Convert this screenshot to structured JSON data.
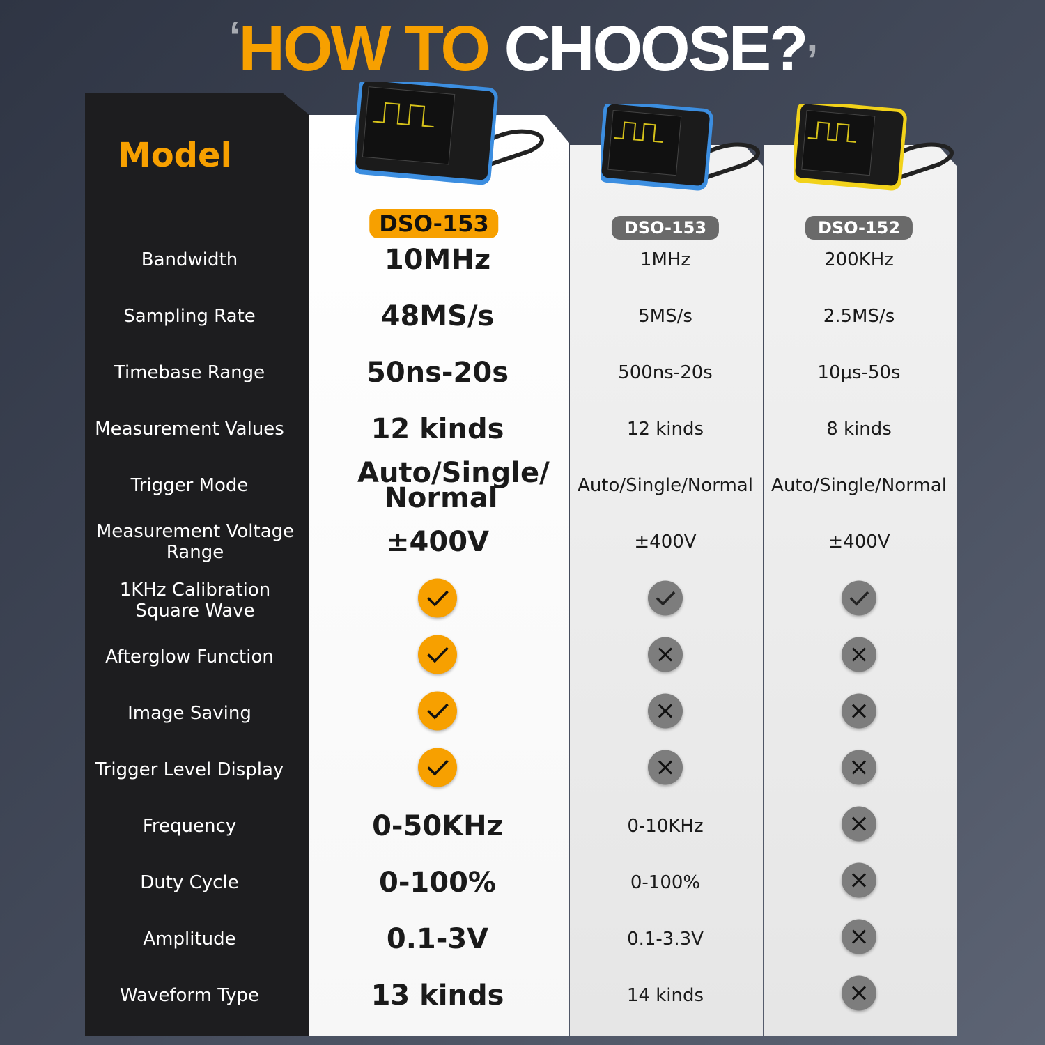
{
  "title": {
    "quote_open": "‘",
    "part1": "HOW TO",
    "part2": "CHOOSE?",
    "quote_close": ","
  },
  "model_label": "Model",
  "models": [
    {
      "name": "DSO-153",
      "highlight": true,
      "frame_color": "#3c8ee0"
    },
    {
      "name": "DSO-153",
      "highlight": false,
      "frame_color": "#3c8ee0"
    },
    {
      "name": "DSO-152",
      "highlight": false,
      "frame_color": "#f2d21a"
    }
  ],
  "colors": {
    "accent": "#f7a000",
    "check_gray": "#7a7a7a",
    "panel": "#1d1d1f"
  },
  "rows": [
    {
      "label": "Bandwidth",
      "values": [
        "10MHz",
        "1MHz",
        "200KHz"
      ]
    },
    {
      "label": "Sampling Rate",
      "values": [
        "48MS/s",
        "5MS/s",
        "2.5MS/s"
      ]
    },
    {
      "label": "Timebase Range",
      "values": [
        "50ns-20s",
        "500ns-20s",
        "10μs-50s"
      ]
    },
    {
      "label": "Measurement Values",
      "values": [
        "12 kinds",
        "12 kinds",
        "8 kinds"
      ]
    },
    {
      "label": "Trigger Mode",
      "values": [
        "Auto/Single/ Normal",
        "Auto/Single/Normal",
        "Auto/Single/Normal"
      ]
    },
    {
      "label": "Measurement Voltage Range",
      "values": [
        "±400V",
        "±400V",
        "±400V"
      ]
    },
    {
      "label": "1KHz Calibration Square Wave",
      "values": [
        "check",
        "check",
        "check"
      ]
    },
    {
      "label": "Afterglow Function",
      "values": [
        "check",
        "cross",
        "cross"
      ]
    },
    {
      "label": "Image Saving",
      "values": [
        "check",
        "cross",
        "cross"
      ]
    },
    {
      "label": "Trigger Level Display",
      "values": [
        "check",
        "cross",
        "cross"
      ]
    },
    {
      "label": "Frequency",
      "values": [
        "0-50KHz",
        "0-10KHz",
        "cross"
      ]
    },
    {
      "label": "Duty Cycle",
      "values": [
        "0-100%",
        "0-100%",
        "cross"
      ]
    },
    {
      "label": "Amplitude",
      "values": [
        "0.1-3V",
        "0.1-3.3V",
        "cross"
      ]
    },
    {
      "label": "Waveform Type",
      "values": [
        "13 kinds",
        "14 kinds",
        "cross"
      ]
    }
  ]
}
